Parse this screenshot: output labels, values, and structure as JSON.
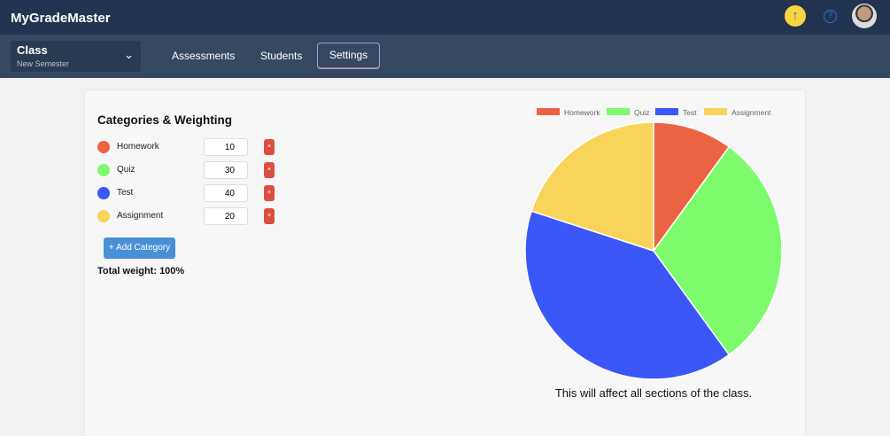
{
  "header": {
    "brand": "MyGradeMaster",
    "upload_icon": "arrow-up-icon",
    "help_icon": "question-icon"
  },
  "nav": {
    "class_title": "Class",
    "class_subtitle": "New Semester",
    "tabs": [
      {
        "label": "Assessments"
      },
      {
        "label": "Students"
      },
      {
        "label": "Settings",
        "active": true
      }
    ]
  },
  "categories": {
    "title": "Categories & Weighting",
    "items": [
      {
        "name": "Homework",
        "weight": "10",
        "color": "#ec6344"
      },
      {
        "name": "Quiz",
        "weight": "30",
        "color": "#7dfb6d"
      },
      {
        "name": "Test",
        "weight": "40",
        "color": "#3b57f7"
      },
      {
        "name": "Assignment",
        "weight": "20",
        "color": "#f9d45a"
      }
    ],
    "delete_label": "×",
    "add_label": "+ Add Category",
    "total": "Total weight: 100%"
  },
  "chart_data": {
    "type": "pie",
    "categories": [
      "Homework",
      "Quiz",
      "Test",
      "Assignment"
    ],
    "values": [
      10,
      30,
      40,
      20
    ],
    "colors": [
      "#ec6344",
      "#7dfb6d",
      "#3b57f7",
      "#f9d45a"
    ],
    "legend": "top"
  },
  "note": "This will affect all sections of the class."
}
